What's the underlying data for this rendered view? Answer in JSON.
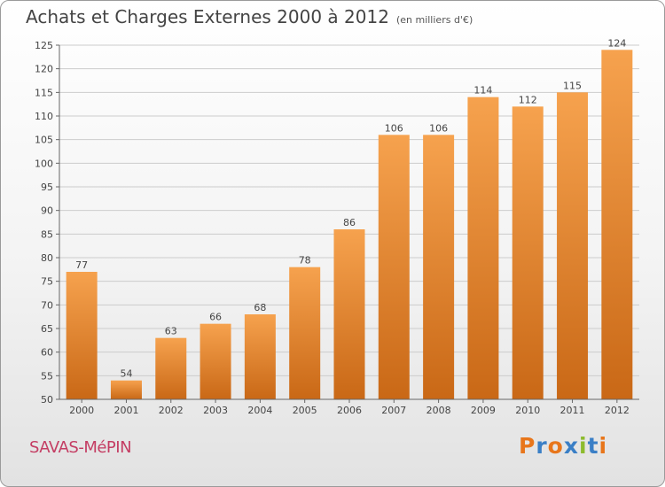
{
  "header": {
    "title": "Achats et Charges Externes 2000 à 2012",
    "unit": "(en milliers d'€)"
  },
  "footer": {
    "commune": "SAVAS-MéPIN",
    "brand": {
      "letters": [
        "P",
        "r",
        "o",
        "x",
        "i",
        "t",
        "i"
      ],
      "colors": [
        "#e8761b",
        "#3a7fc6",
        "#e8761b",
        "#3a7fc6",
        "#8dbb2e",
        "#3a7fc6",
        "#e8761b"
      ]
    }
  },
  "chart_data": {
    "type": "bar",
    "categories": [
      "2000",
      "2001",
      "2002",
      "2003",
      "2004",
      "2005",
      "2006",
      "2007",
      "2008",
      "2009",
      "2010",
      "2011",
      "2012"
    ],
    "values": [
      77,
      54,
      63,
      66,
      68,
      78,
      86,
      106,
      106,
      114,
      112,
      115,
      124
    ],
    "ylim": [
      50,
      125
    ],
    "yticks": [
      50,
      55,
      60,
      65,
      70,
      75,
      80,
      85,
      90,
      95,
      100,
      105,
      110,
      115,
      120,
      125
    ],
    "grid": true,
    "colors": {
      "bar_top": "#f6a24e",
      "bar_bottom": "#c96816",
      "grid": "#cccccc",
      "label": "#444444"
    }
  }
}
